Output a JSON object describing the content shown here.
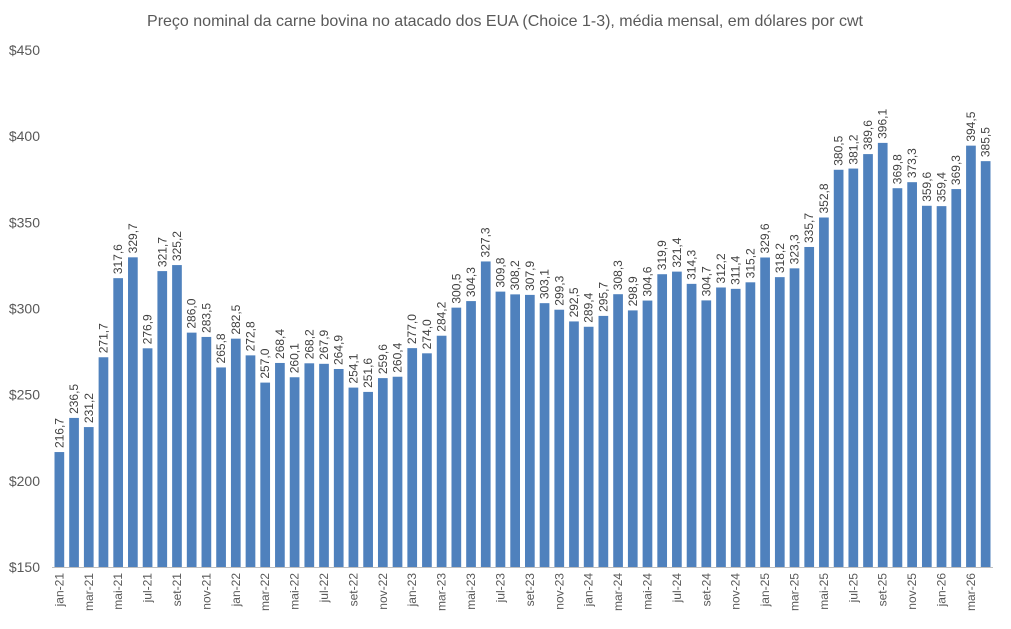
{
  "chart_data": {
    "type": "bar",
    "title": "Preço nominal da carne bovina no atacado dos EUA (Choice 1-3), média mensal, em dólares por cwt",
    "xlabel": "",
    "ylabel": "",
    "ylim": [
      150,
      450
    ],
    "yticks": [
      150,
      200,
      250,
      300,
      350,
      400,
      450
    ],
    "ytick_labels": [
      "$150",
      "$200",
      "$250",
      "$300",
      "$350",
      "$400",
      "$450"
    ],
    "grid": false,
    "legend": "none",
    "bar_color": "#4F81BD",
    "categories": [
      "jan-21",
      "fev-21",
      "mar-21",
      "abr-21",
      "mai-21",
      "jun-21",
      "jul-21",
      "ago-21",
      "set-21",
      "out-21",
      "nov-21",
      "dez-21",
      "jan-22",
      "fev-22",
      "mar-22",
      "abr-22",
      "mai-22",
      "jun-22",
      "jul-22",
      "ago-22",
      "set-22",
      "out-22",
      "nov-22",
      "dez-22",
      "jan-23",
      "fev-23",
      "mar-23",
      "abr-23",
      "mai-23",
      "jun-23",
      "jul-23",
      "ago-23",
      "set-23",
      "out-23",
      "nov-23",
      "dez-23",
      "jan-24",
      "fev-24",
      "mar-24",
      "abr-24",
      "mai-24",
      "jun-24",
      "jul-24",
      "ago-24",
      "set-24",
      "out-24",
      "nov-24",
      "dez-24",
      "jan-25",
      "fev-25",
      "mar-25",
      "abr-25",
      "mai-25",
      "jun-25",
      "jul-25",
      "ago-25",
      "set-25",
      "out-25",
      "nov-25",
      "dez-25",
      "jan-26",
      "fev-26",
      "mar-26",
      "abr-26"
    ],
    "xtick_labels": [
      "jan-21",
      "mar-21",
      "mai-21",
      "jul-21",
      "set-21",
      "nov-21",
      "jan-22",
      "mar-22",
      "mai-22",
      "jul-22",
      "set-22",
      "nov-22",
      "jan-23",
      "mar-23",
      "mai-23",
      "jul-23",
      "set-23",
      "nov-23",
      "jan-24",
      "mar-24",
      "mai-24",
      "jul-24",
      "set-24",
      "nov-24",
      "jan-25",
      "mar-25",
      "mai-25",
      "jul-25",
      "set-25",
      "nov-25",
      "jan-26",
      "mar-26"
    ],
    "values": [
      216.7,
      236.5,
      231.2,
      271.7,
      317.6,
      329.7,
      276.9,
      321.7,
      325.2,
      286.0,
      283.5,
      265.8,
      282.5,
      272.8,
      257.0,
      268.4,
      260.1,
      268.2,
      267.9,
      264.9,
      254.1,
      251.6,
      259.6,
      260.4,
      277.0,
      274.0,
      284.2,
      300.5,
      304.3,
      327.3,
      309.8,
      308.2,
      307.9,
      303.1,
      299.3,
      292.5,
      289.4,
      295.7,
      308.3,
      298.9,
      304.6,
      319.9,
      321.4,
      314.3,
      304.7,
      312.2,
      311.4,
      315.2,
      329.6,
      318.2,
      323.3,
      335.7,
      352.8,
      380.5,
      381.2,
      389.6,
      396.1,
      369.8,
      373.3,
      359.6,
      359.4,
      369.3,
      394.5,
      385.5
    ],
    "value_labels": [
      "216,7",
      "236,5",
      "231,2",
      "271,7",
      "317,6",
      "329,7",
      "276,9",
      "321,7",
      "325,2",
      "286,0",
      "283,5",
      "265,8",
      "282,5",
      "272,8",
      "257,0",
      "268,4",
      "260,1",
      "268,2",
      "267,9",
      "264,9",
      "254,1",
      "251,6",
      "259,6",
      "260,4",
      "277,0",
      "274,0",
      "284,2",
      "300,5",
      "304,3",
      "327,3",
      "309,8",
      "308,2",
      "307,9",
      "303,1",
      "299,3",
      "292,5",
      "289,4",
      "295,7",
      "308,3",
      "298,9",
      "304,6",
      "319,9",
      "321,4",
      "314,3",
      "304,7",
      "312,2",
      "311,4",
      "315,2",
      "329,6",
      "318,2",
      "323,3",
      "335,7",
      "352,8",
      "380,5",
      "381,2",
      "389,6",
      "396,1",
      "369,8",
      "373,3",
      "359,6",
      "359,4",
      "369,3",
      "394,5",
      "385,5"
    ]
  }
}
